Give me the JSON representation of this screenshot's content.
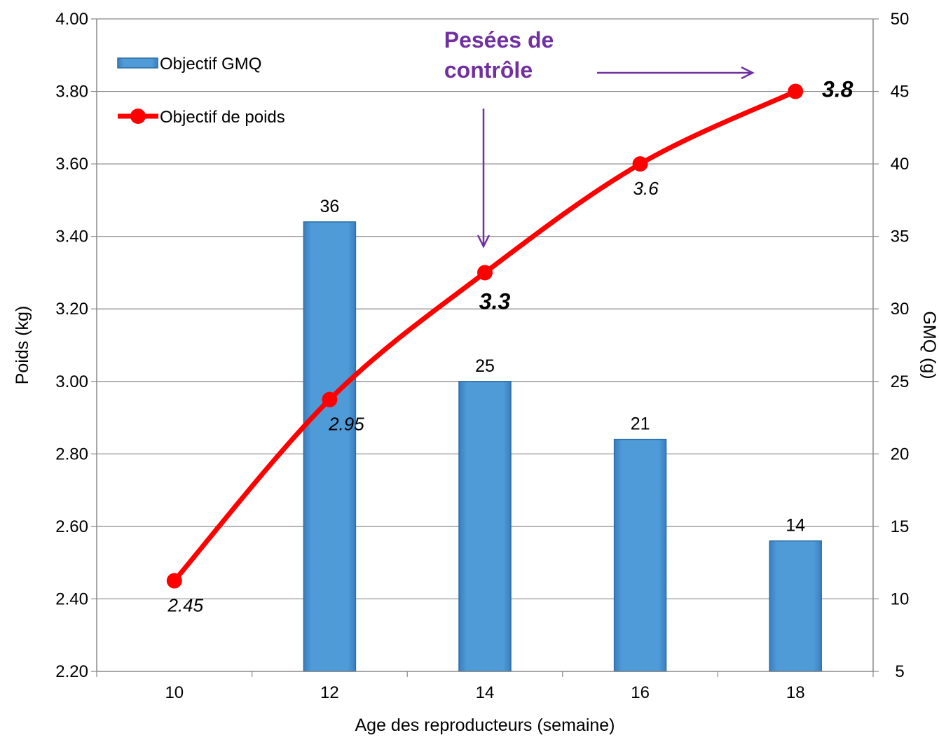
{
  "chart_data": {
    "type": "bar+line",
    "categories": [
      "10",
      "12",
      "14",
      "16",
      "18"
    ],
    "series": [
      {
        "name": "Objectif GMQ",
        "type": "bar",
        "axis": "right",
        "color": "#4F9BD8",
        "values": [
          null,
          36,
          25,
          21,
          14
        ],
        "labels": [
          "",
          "36",
          "25",
          "21",
          "14"
        ]
      },
      {
        "name": "Objectif de poids",
        "type": "line",
        "axis": "left",
        "color": "#FF0000",
        "values": [
          2.45,
          2.95,
          3.3,
          3.6,
          3.8
        ],
        "labels": [
          {
            "text": "2.45",
            "bold": false
          },
          {
            "text": "2.95",
            "bold": false
          },
          {
            "text": "3.3",
            "bold": true
          },
          {
            "text": "3.6",
            "bold": false
          },
          {
            "text": "3.8",
            "bold": true
          }
        ]
      }
    ],
    "xlabel": "Age des reproducteurs (semaine)",
    "ylabel": "Poids (kg)",
    "y2label": "GMQ (g)",
    "ylim": [
      2.2,
      4.0
    ],
    "y2lim": [
      5,
      50
    ],
    "yticks": [
      "2.20",
      "2.40",
      "2.60",
      "2.80",
      "3.00",
      "3.20",
      "3.40",
      "3.60",
      "3.80",
      "4.00"
    ],
    "y2ticks": [
      "5",
      "10",
      "15",
      "20",
      "25",
      "30",
      "35",
      "40",
      "45",
      "50"
    ],
    "grid": true,
    "legend_position": "top-left",
    "annotation": {
      "text_line1": "Pesées de",
      "text_line2": "contrôle",
      "color": "#7030A0"
    }
  }
}
